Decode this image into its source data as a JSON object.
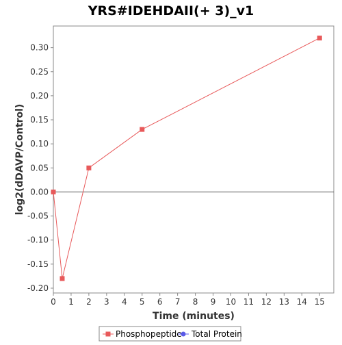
{
  "chart_data": {
    "type": "line",
    "title": "YRS#IDEHDAII(+ 3)_v1",
    "xlabel": "Time (minutes)",
    "ylabel": "log2(dDAVP/Control)",
    "xlim": [
      0,
      15.8
    ],
    "ylim": [
      -0.21,
      0.345
    ],
    "xticks": [
      0,
      1,
      2,
      3,
      4,
      5,
      6,
      7,
      8,
      9,
      10,
      11,
      12,
      13,
      14,
      15
    ],
    "yticks": [
      -0.2,
      -0.15,
      -0.1,
      -0.05,
      0.0,
      0.05,
      0.1,
      0.15,
      0.2,
      0.25,
      0.3
    ],
    "ytick_labels": [
      "-0.20",
      "-0.15",
      "-0.10",
      "-0.05",
      "0.00",
      "0.05",
      "0.10",
      "0.15",
      "0.20",
      "0.25",
      "0.30"
    ],
    "grid": false,
    "zero_line": true,
    "legend_position": "bottom",
    "series": [
      {
        "name": "Phosphopeptide",
        "color": "#e8595a",
        "marker": "square",
        "x": [
          0,
          0.5,
          2,
          5,
          15
        ],
        "y": [
          0.0,
          -0.18,
          0.05,
          0.13,
          0.32
        ]
      },
      {
        "name": "Total Protein",
        "color": "#5a5ae8",
        "marker": "circle",
        "x": [],
        "y": []
      }
    ]
  }
}
